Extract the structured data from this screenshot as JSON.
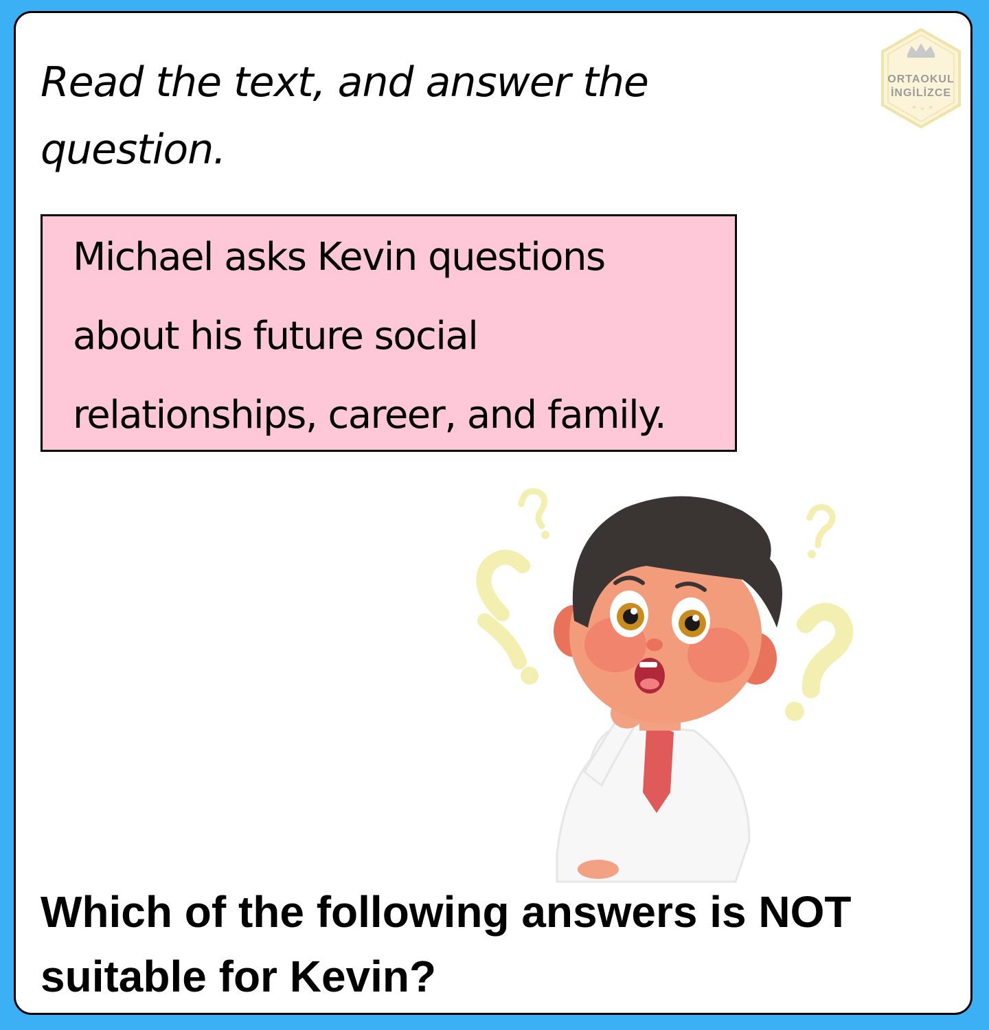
{
  "instruction": "Read the text, and answer the question.",
  "passage": {
    "line1": "Michael asks Kevin questions",
    "line2": "about his future social",
    "line3": "relationships, career, and family."
  },
  "question": "Which of the following answers is NOT suitable for Kevin?",
  "logo": {
    "line1": "ORTAOKUL",
    "line2": "İNGİLİZCE"
  },
  "colors": {
    "background": "#3bb0f5",
    "passage_box": "#ffc8d8",
    "question_marks": "#f5f0a8"
  }
}
